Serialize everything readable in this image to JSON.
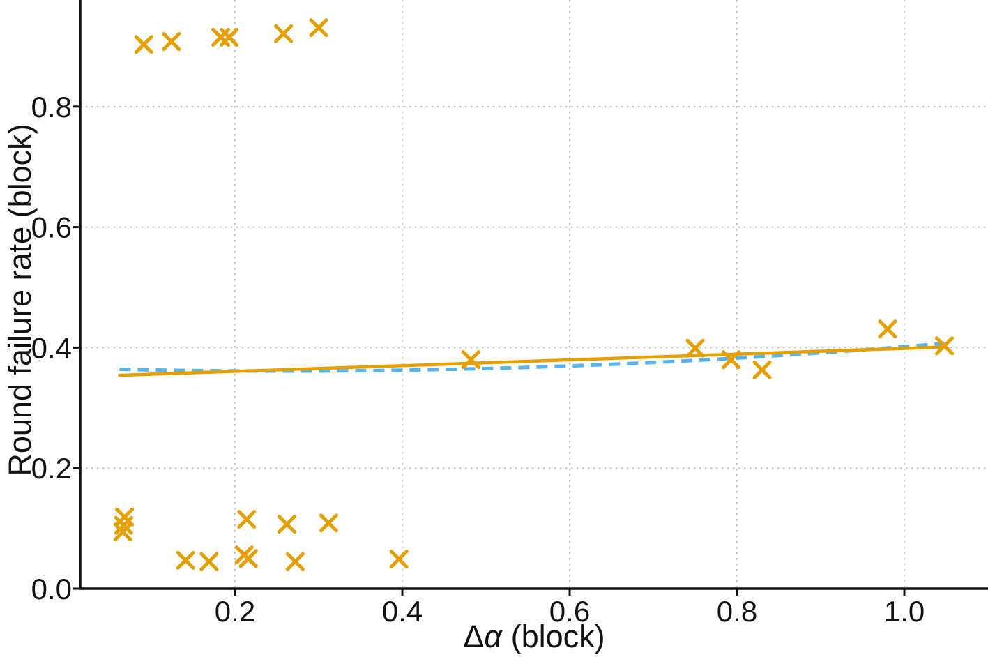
{
  "page": {
    "background": "#ffffff"
  },
  "chart_data": {
    "type": "scatter",
    "title": "",
    "xlabel": {
      "prefix": "Δ",
      "italic": "α",
      "suffix": " (block)",
      "full": "Δα (block)"
    },
    "ylabel": "Round failure rate (block)",
    "xlim": [
      0.015,
      1.1
    ],
    "ylim": [
      0.0,
      0.977
    ],
    "x_ticks": [
      "0.2",
      "0.4",
      "0.6",
      "0.8",
      "1.0"
    ],
    "y_ticks": [
      "0.0",
      "0.2",
      "0.4",
      "0.6",
      "0.8"
    ],
    "grid": true,
    "grid_style": "dotted",
    "legend_position": "none",
    "colors": {
      "marker": "#E69F00",
      "linear_fit": "#E69F00",
      "smoothed_fit": "#56B4E9",
      "grid": "#c4c4c4",
      "axis": "#111111",
      "text": "#111111"
    },
    "series": [
      {
        "name": "round-failure-observations",
        "type": "scatter",
        "marker": "x",
        "color": "#E69F00",
        "points": [
          [
            0.091,
            0.903
          ],
          [
            0.124,
            0.908
          ],
          [
            0.183,
            0.915
          ],
          [
            0.193,
            0.915
          ],
          [
            0.258,
            0.921
          ],
          [
            0.3,
            0.931
          ],
          [
            0.482,
            0.38
          ],
          [
            0.75,
            0.399
          ],
          [
            0.793,
            0.38
          ],
          [
            0.83,
            0.363
          ],
          [
            0.98,
            0.431
          ],
          [
            1.048,
            0.403
          ],
          [
            0.068,
            0.119
          ],
          [
            0.067,
            0.105
          ],
          [
            0.066,
            0.094
          ],
          [
            0.141,
            0.047
          ],
          [
            0.169,
            0.045
          ],
          [
            0.214,
            0.115
          ],
          [
            0.211,
            0.056
          ],
          [
            0.216,
            0.05
          ],
          [
            0.262,
            0.107
          ],
          [
            0.272,
            0.045
          ],
          [
            0.312,
            0.109
          ],
          [
            0.396,
            0.049
          ]
        ]
      },
      {
        "name": "linear-fit-line",
        "type": "line",
        "style": "solid",
        "color": "#E69F00",
        "points": [
          [
            0.062,
            0.354
          ],
          [
            1.048,
            0.401
          ]
        ]
      },
      {
        "name": "smoothed-fit-line",
        "type": "line",
        "style": "dashed",
        "color": "#56B4E9",
        "curve": {
          "p0": [
            0.062,
            0.364
          ],
          "ctrl": [
            0.555,
            0.3495
          ],
          "p2": [
            1.048,
            0.407
          ]
        }
      }
    ]
  }
}
